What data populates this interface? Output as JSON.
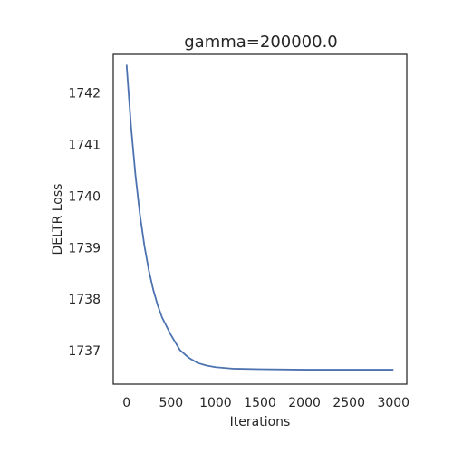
{
  "chart_data": {
    "type": "line",
    "title": "gamma=200000.0",
    "xlabel": "Iterations",
    "ylabel": "DELTR Loss",
    "xlim": [
      -150,
      3150
    ],
    "ylim": [
      1736.35,
      1742.75
    ],
    "xticks": [
      0,
      500,
      1000,
      1500,
      2000,
      2500,
      3000
    ],
    "yticks": [
      1737,
      1738,
      1739,
      1740,
      1741,
      1742
    ],
    "grid": false,
    "legend": "none",
    "series": [
      {
        "color": "#4c72b0",
        "x": [
          0,
          50,
          100,
          150,
          200,
          250,
          300,
          350,
          400,
          500,
          600,
          700,
          800,
          900,
          1000,
          1200,
          1500,
          2000,
          2500,
          3000
        ],
        "y": [
          1742.55,
          1741.35,
          1740.4,
          1739.64,
          1739.04,
          1738.56,
          1738.18,
          1737.88,
          1737.64,
          1737.3,
          1737.01,
          1736.86,
          1736.76,
          1736.71,
          1736.68,
          1736.65,
          1736.64,
          1736.63,
          1736.63,
          1736.63
        ]
      }
    ]
  }
}
